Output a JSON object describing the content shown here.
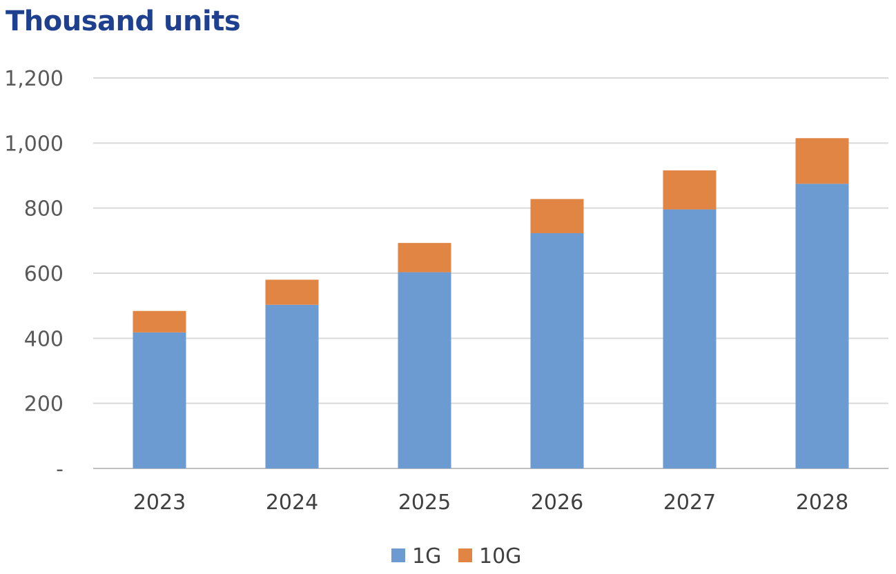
{
  "chart_data": {
    "type": "bar",
    "stacked": true,
    "title": "Thousand units",
    "xlabel": "",
    "ylabel": "",
    "categories": [
      "2023",
      "2024",
      "2025",
      "2026",
      "2027",
      "2028"
    ],
    "series": [
      {
        "name": "1G",
        "color": "#6b9bd1",
        "values": [
          418,
          503,
          603,
          723,
          796,
          875
        ]
      },
      {
        "name": "10G",
        "color": "#e08544",
        "values": [
          66,
          77,
          90,
          105,
          120,
          140
        ]
      }
    ],
    "ylim": [
      0,
      1200
    ],
    "yticks": [
      0,
      200,
      400,
      600,
      800,
      1000,
      1200
    ],
    "ytick_labels": [
      "-",
      "200",
      "400",
      "600",
      "800",
      "1,000",
      "1,200"
    ],
    "grid": true,
    "legend_position": "bottom"
  }
}
